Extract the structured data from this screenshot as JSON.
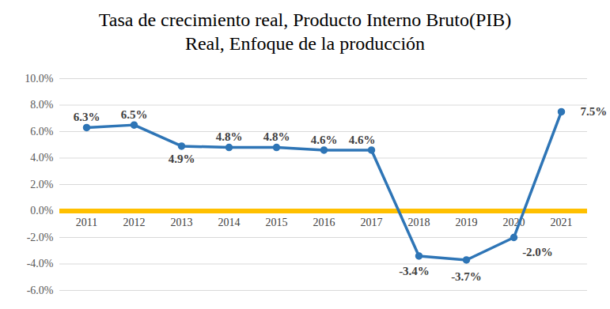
{
  "chart_data": {
    "type": "line",
    "title": "Tasa de crecimiento real, Producto Interno Bruto(PIB)",
    "subtitle": "Real, Enfoque de la producción",
    "categories": [
      "2011",
      "2012",
      "2013",
      "2014",
      "2015",
      "2016",
      "2017",
      "2018",
      "2019",
      "2020",
      "2021"
    ],
    "values": [
      6.3,
      6.5,
      4.9,
      4.8,
      4.8,
      4.6,
      4.6,
      -3.4,
      -3.7,
      -2.0,
      7.5
    ],
    "value_labels": [
      "6.3%",
      "6.5%",
      "4.9%",
      "4.8%",
      "4.8%",
      "4.6%",
      "4.6%",
      "-3.4%",
      "-3.7%",
      "-2.0%",
      "7.5%"
    ],
    "color": "#2E75B6",
    "marker": "circle",
    "data_labels": true,
    "grid": true,
    "ylim": [
      -6,
      10
    ],
    "yticks": [
      {
        "value": -6,
        "label": "-6.0%"
      },
      {
        "value": -4,
        "label": "-4.0%"
      },
      {
        "value": -2,
        "label": "-2.0%"
      },
      {
        "value": 0,
        "label": "0.0%"
      },
      {
        "value": 2,
        "label": "2.0%"
      },
      {
        "value": 4,
        "label": "4.0%"
      },
      {
        "value": 6,
        "label": "6.0%"
      },
      {
        "value": 8,
        "label": "8.0%"
      },
      {
        "value": 10,
        "label": "10.0%"
      }
    ]
  }
}
